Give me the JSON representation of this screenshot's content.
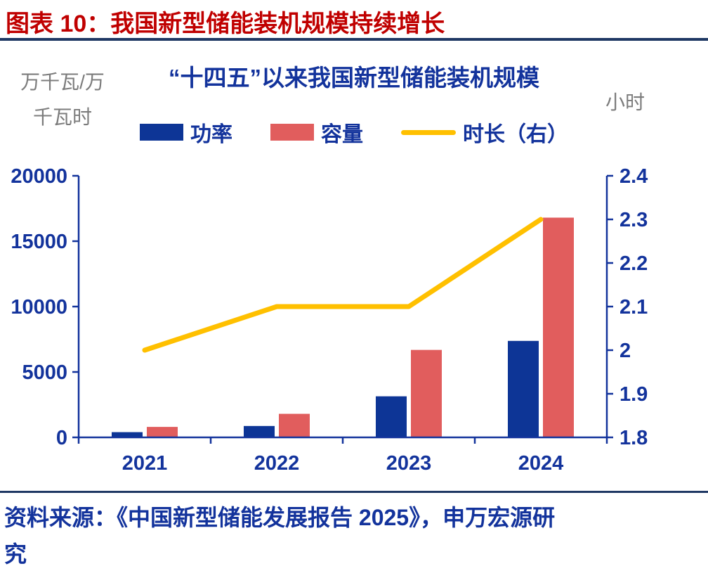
{
  "header": {
    "title": "图表 10：我国新型储能装机规模持续增长"
  },
  "chart": {
    "title": "“十四五”以来我国新型储能装机规模",
    "left_unit_lines": [
      "万千瓦/万",
      "千瓦时"
    ],
    "right_axis_unit": "小时"
  },
  "colors": {
    "title_red": "#C00000",
    "navy": "#13339C",
    "rule_navy": "#1F3864",
    "unit_gray": "#7C7C7C",
    "bar_blue": "#0D3596",
    "bar_red": "#E15D5D",
    "line_yellow": "#FFC000"
  },
  "chart_data": {
    "type": "bar",
    "subtype": "grouped-bars-with-line",
    "title": "“十四五”以来我国新型储能装机规模",
    "xlabel": "",
    "ylabel": "万千瓦/万千瓦时",
    "y2label": "小时",
    "grid": false,
    "legend_position": "top",
    "categories": [
      "2021",
      "2022",
      "2023",
      "2024"
    ],
    "series": [
      {
        "name": "功率",
        "type": "bar",
        "axis": "left",
        "color": "#0D3596",
        "values": [
          400,
          870,
          3139,
          7376
        ]
      },
      {
        "name": "容量",
        "type": "bar",
        "axis": "left",
        "color": "#E15D5D",
        "values": [
          800,
          1800,
          6687,
          16800
        ]
      },
      {
        "name": "时长（右）",
        "type": "line",
        "axis": "right",
        "color": "#FFC000",
        "values": [
          2.0,
          2.1,
          2.1,
          2.3
        ]
      }
    ],
    "left_axis": {
      "min": 0,
      "max": 20000,
      "step": 5000,
      "ticks": [
        "0",
        "5000",
        "10000",
        "15000",
        "20000"
      ]
    },
    "right_axis": {
      "min": 1.8,
      "max": 2.4,
      "step": 0.1,
      "ticks": [
        "1.8",
        "1.9",
        "2",
        "2.1",
        "2.2",
        "2.3",
        "2.4"
      ]
    }
  },
  "footer": {
    "lines": [
      "资料来源：《中国新型储能发展报告 2025》，申万宏源研",
      "究"
    ]
  }
}
